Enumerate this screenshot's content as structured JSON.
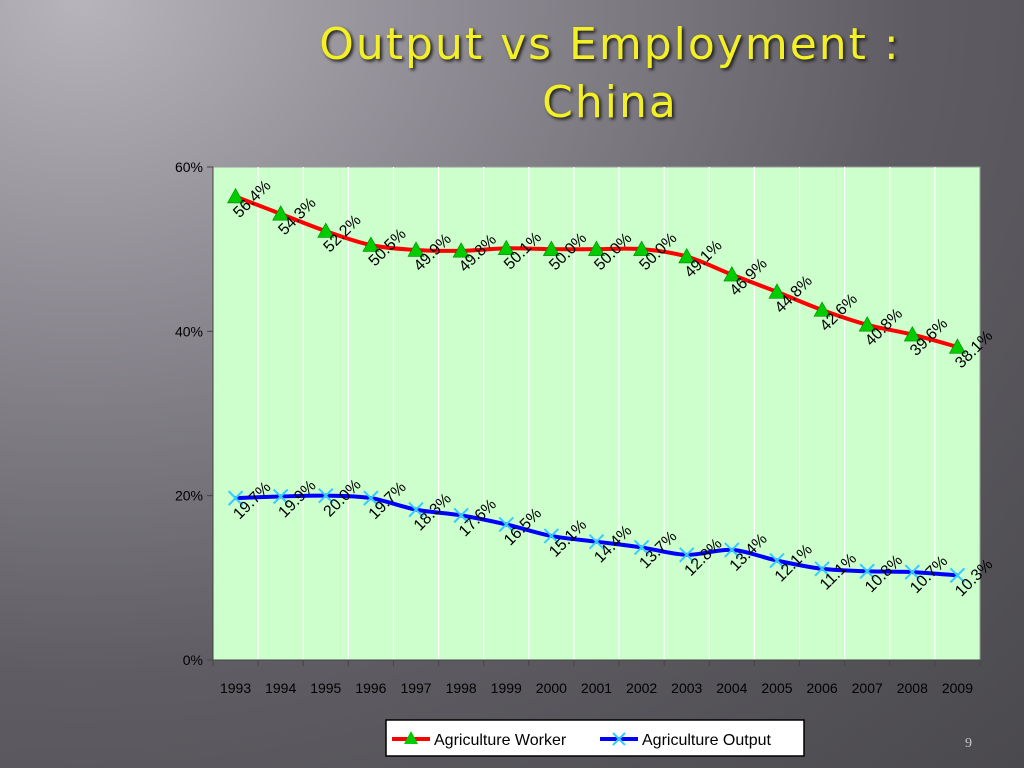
{
  "slide": {
    "title": "Output vs Employment : China",
    "page_number": "9"
  },
  "chart_data": {
    "type": "line",
    "title": "",
    "xlabel": "",
    "ylabel": "",
    "categories": [
      "1993",
      "1994",
      "1995",
      "1996",
      "1997",
      "1998",
      "1999",
      "2000",
      "2001",
      "2002",
      "2003",
      "2004",
      "2005",
      "2006",
      "2007",
      "2008",
      "2009"
    ],
    "ylim": [
      0,
      60
    ],
    "yticks": [
      "0%",
      "20%",
      "40%",
      "60%"
    ],
    "grid": "vertical",
    "legend_position": "bottom",
    "plot_background": "#ccffcc",
    "series": [
      {
        "name": "Agriculture Worker",
        "line_color": "#ff0000",
        "marker": "triangle",
        "marker_color": "#00cc00",
        "values": [
          56.4,
          54.3,
          52.2,
          50.5,
          49.9,
          49.8,
          50.1,
          50.0,
          50.0,
          50.0,
          49.1,
          46.9,
          44.8,
          42.6,
          40.8,
          39.6,
          38.1
        ],
        "labels": [
          "56.4%",
          "54.3%",
          "52.2%",
          "50.5%",
          "49.9%",
          "49.8%",
          "50.1%",
          "50.0%",
          "50.0%",
          "50.0%",
          "49.1%",
          "46.9%",
          "44.8%",
          "42.6%",
          "40.8%",
          "39.6%",
          "38.1%"
        ]
      },
      {
        "name": "Agriculture Output",
        "line_color": "#0000ff",
        "marker": "x",
        "marker_color": "#33ccff",
        "values": [
          19.7,
          19.9,
          20.0,
          19.7,
          18.3,
          17.6,
          16.5,
          15.1,
          14.4,
          13.7,
          12.8,
          13.4,
          12.1,
          11.1,
          10.8,
          10.7,
          10.3
        ],
        "labels": [
          "19.7%",
          "19.9%",
          "20.0%",
          "19.7%",
          "18.3%",
          "17.6%",
          "16.5%",
          "15.1%",
          "14.4%",
          "13.7%",
          "12.8%",
          "13.4%",
          "12.1%",
          "11.1%",
          "10.8%",
          "10.7%",
          "10.3%"
        ]
      }
    ]
  }
}
